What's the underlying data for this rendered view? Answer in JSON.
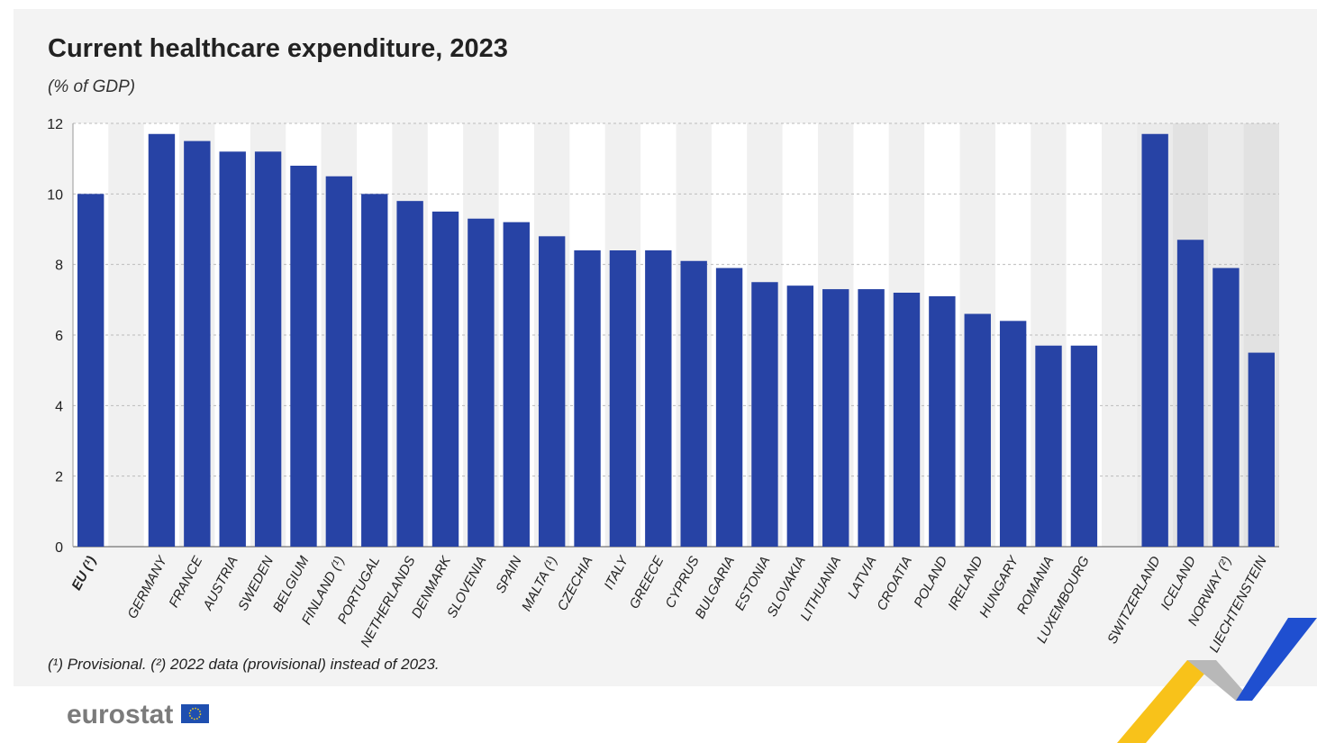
{
  "chart_data": {
    "type": "bar",
    "title": "Current healthcare expenditure, 2023",
    "subtitle": "(% of GDP)",
    "ylim": [
      0,
      12
    ],
    "yticks": [
      0,
      2,
      4,
      6,
      8,
      10,
      12
    ],
    "grid": true,
    "groups": [
      {
        "categories": [
          "EU (¹)"
        ],
        "values": [
          10.0
        ],
        "bold": true
      },
      {
        "categories": [
          "GERMANY",
          "FRANCE",
          "AUSTRIA",
          "SWEDEN",
          "BELGIUM",
          "FINLAND (¹)",
          "PORTUGAL",
          "NETHERLANDS",
          "DENMARK",
          "SLOVENIA",
          "SPAIN",
          "MALTA (¹)",
          "CZECHIA",
          "ITALY",
          "GREECE",
          "CYPRUS",
          "BULGARIA",
          "ESTONIA",
          "SLOVAKIA",
          "LITHUANIA",
          "LATVIA",
          "CROATIA",
          "POLAND",
          "IRELAND",
          "HUNGARY",
          "ROMANIA",
          "LUXEMBOURG"
        ],
        "values": [
          11.7,
          11.5,
          11.2,
          11.2,
          10.8,
          10.5,
          10.0,
          9.8,
          9.5,
          9.3,
          9.2,
          8.8,
          8.4,
          8.4,
          8.4,
          8.1,
          7.9,
          7.5,
          7.4,
          7.3,
          7.3,
          7.2,
          7.1,
          6.6,
          6.4,
          5.7,
          5.7
        ]
      },
      {
        "categories": [
          "SWITZERLAND",
          "ICELAND",
          "NORWAY (²)",
          "LIECHTENSTEIN"
        ],
        "values": [
          11.7,
          8.7,
          7.9,
          5.5
        ],
        "shaded": true
      }
    ],
    "bar_color": "#2743a5",
    "footnote": "(¹) Provisional. (²) 2022 data (provisional) instead of 2023."
  },
  "logo": {
    "text": "eurostat",
    "color": "#7b7b7b",
    "flag_color": "#1f4fb0"
  },
  "colors": {
    "panel": "#f3f3f3",
    "accent_yellow": "#f8c21a",
    "accent_blue": "#1f4fd0"
  }
}
